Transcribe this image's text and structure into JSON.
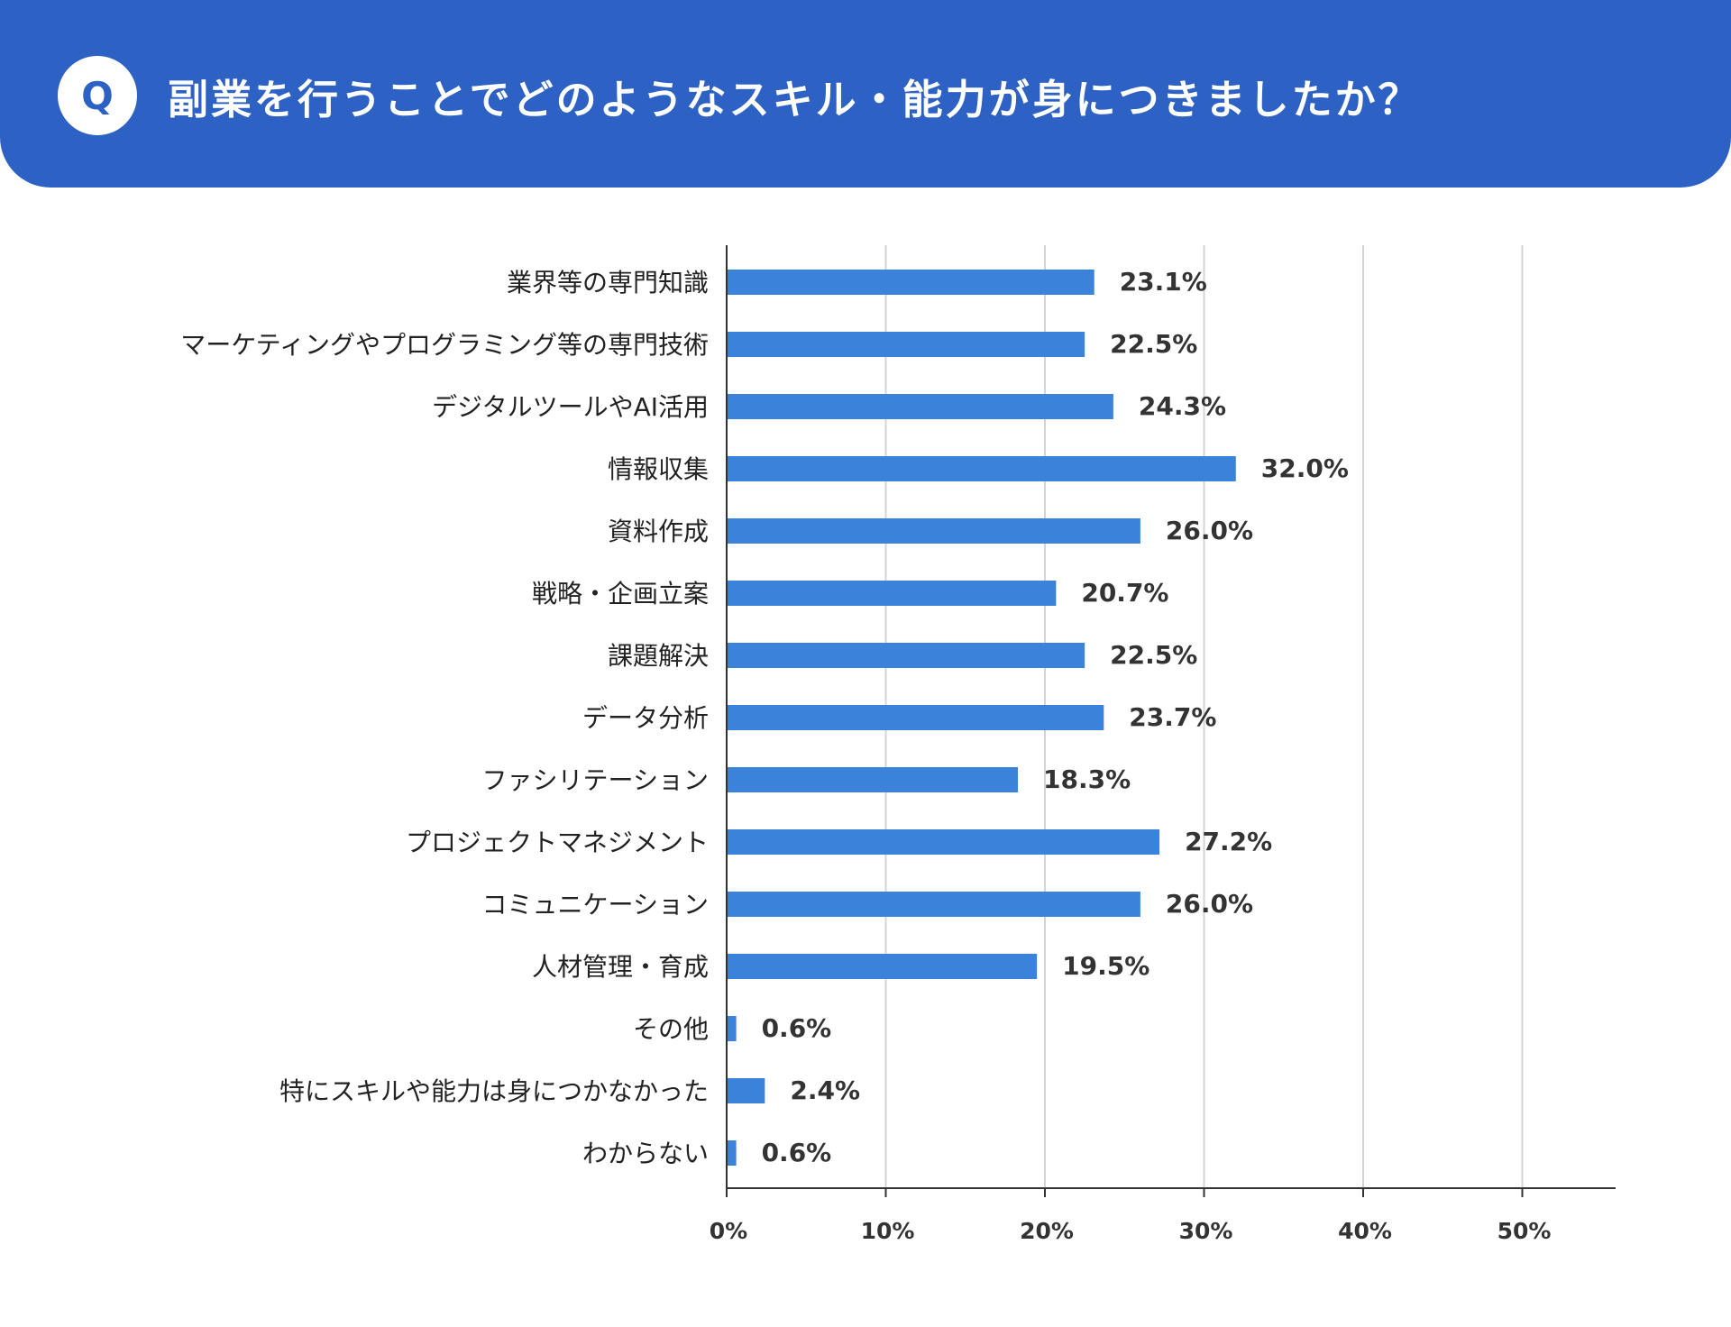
{
  "header": {
    "badge": "Q",
    "title": "副業を行うことでどのようなスキル・能力が身につきましたか？",
    "color": "#2d62c4"
  },
  "chart_data": {
    "type": "bar",
    "orientation": "horizontal",
    "title": "副業を行うことでどのようなスキル・能力が身につきましたか？",
    "categories": [
      "業界等の専門知識",
      "マーケティングやプログラミング等の専門技術",
      "デジタルツールやAI活用",
      "情報収集",
      "資料作成",
      "戦略・企画立案",
      "課題解決",
      "データ分析",
      "ファシリテーション",
      "プロジェクトマネジメント",
      "コミュニケーション",
      "人材管理・育成",
      "その他",
      "特にスキルや能力は身につかなかった",
      "わからない"
    ],
    "values": [
      23.1,
      22.5,
      24.3,
      32.0,
      26.0,
      20.7,
      22.5,
      23.7,
      18.3,
      27.2,
      26.0,
      19.5,
      0.6,
      2.4,
      0.6
    ],
    "value_labels": [
      "23.1%",
      "22.5%",
      "24.3%",
      "32.0%",
      "26.0%",
      "20.7%",
      "22.5%",
      "23.7%",
      "18.3%",
      "27.2%",
      "26.0%",
      "19.5%",
      "0.6%",
      "2.4%",
      "0.6%"
    ],
    "ticks": [
      0,
      10,
      20,
      30,
      40,
      50
    ],
    "tick_labels": [
      "0%",
      "10%",
      "20%",
      "30%",
      "40%",
      "50%"
    ],
    "xlim": [
      0,
      55.9
    ],
    "grid": true,
    "bar_color": "#3b82db",
    "xlabel": "",
    "ylabel": ""
  }
}
